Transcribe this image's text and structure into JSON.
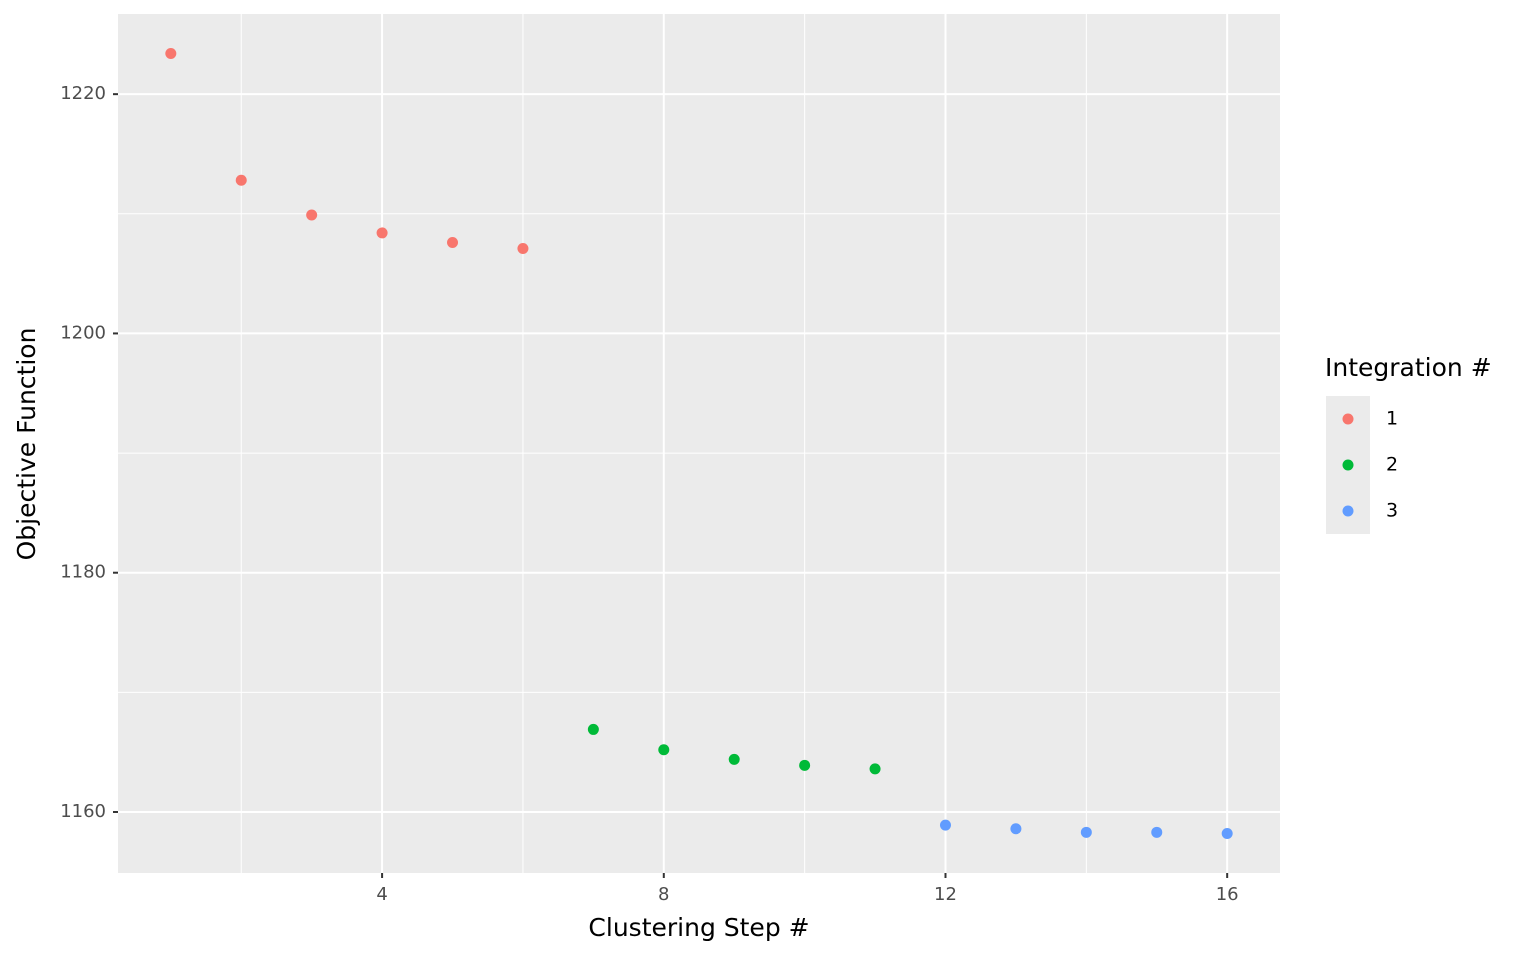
{
  "chart_data": {
    "type": "scatter",
    "x_label": "Clustering Step #",
    "y_label": "Objective Function",
    "legend_title": "Integration #",
    "legend_position": "right",
    "grid": true,
    "xlim": [
      0.25,
      16.75
    ],
    "ylim": [
      1154.9,
      1226.7
    ],
    "xticks": [
      4,
      8,
      12,
      16
    ],
    "yticks": [
      1160,
      1180,
      1200,
      1220
    ],
    "series": [
      {
        "name": "1",
        "color": "#F8766D",
        "x": [
          1,
          2,
          3,
          4,
          5,
          6
        ],
        "values": [
          1223.4,
          1212.8,
          1209.9,
          1208.4,
          1207.6,
          1207.1
        ]
      },
      {
        "name": "2",
        "color": "#00BA38",
        "x": [
          7,
          8,
          9,
          10,
          11
        ],
        "values": [
          1166.9,
          1165.2,
          1164.4,
          1163.9,
          1163.6
        ]
      },
      {
        "name": "3",
        "color": "#619CFF",
        "x": [
          12,
          13,
          14,
          15,
          16
        ],
        "values": [
          1158.9,
          1158.6,
          1158.3,
          1158.3,
          1158.2
        ]
      }
    ]
  }
}
